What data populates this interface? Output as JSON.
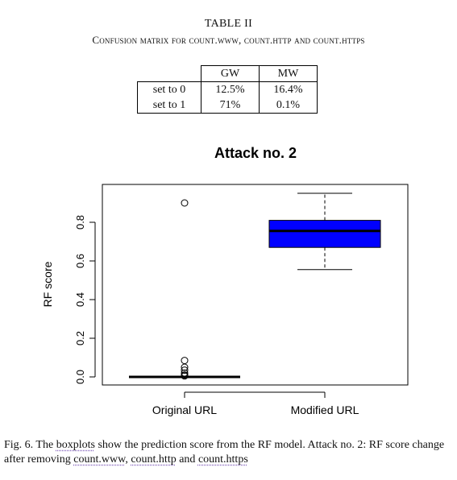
{
  "table": {
    "title": "TABLE II",
    "caption": "Confusion matrix for count.www, count.http and count.https",
    "col_headers": [
      "",
      "GW",
      "MW"
    ],
    "rows": [
      {
        "label": "set to 0",
        "gw": "12.5%",
        "mw": "16.4%"
      },
      {
        "label": "set to 1",
        "gw": "71%",
        "mw": "0.1%"
      }
    ]
  },
  "chart_data": {
    "type": "box",
    "title": "Attack no. 2",
    "ylabel": "RF score",
    "xlabel": "",
    "categories": [
      "Original URL",
      "Modified URL"
    ],
    "yticks": [
      "0.0",
      "0.2",
      "0.4",
      "0.6",
      "0.8"
    ],
    "ylim": [
      -0.02,
      0.97
    ],
    "grid": false,
    "boxes": [
      {
        "name": "Original URL",
        "min": 0.0,
        "q1": 0.0,
        "median": 0.0,
        "q3": 0.0,
        "max": 0.0,
        "outliers": [
          0.9,
          0.085,
          0.05,
          0.035,
          0.02,
          0.01,
          0.005
        ],
        "color": "#ffffff"
      },
      {
        "name": "Modified URL",
        "min": 0.555,
        "q1": 0.67,
        "median": 0.755,
        "q3": 0.81,
        "max": 0.95,
        "outliers": [],
        "color": "#0000ff"
      }
    ]
  },
  "figure": {
    "caption_prefix": "Fig. 6. The ",
    "caption_word1": "boxplots",
    "caption_mid": " show the prediction score from the RF model. Attack no. 2: RF score change after removing ",
    "caption_word2": "count.www",
    "caption_comma": ", ",
    "caption_word3": "count.http",
    "caption_and": " and ",
    "caption_word4": "count.https"
  }
}
